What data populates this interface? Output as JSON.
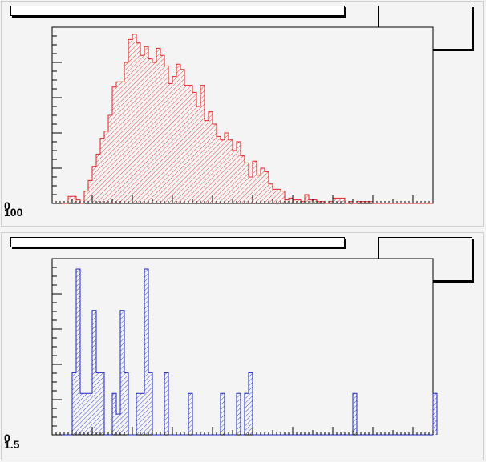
{
  "chart_data": [
    {
      "type": "histogram",
      "title": "",
      "xlabel": "",
      "ylabel": "",
      "style": {
        "line_color": "#e0221f",
        "fill_color": "#e0221f",
        "fill_pattern": "diagonal-hatch"
      },
      "xlim": [
        0,
        95
      ],
      "ylim": [
        0,
        100
      ],
      "y_tick_labels": [
        "0",
        "100"
      ],
      "bin_width": 1,
      "values": [
        0,
        0,
        0,
        0,
        4,
        4,
        2,
        0,
        7,
        13,
        21,
        28,
        37,
        41,
        50,
        66,
        69,
        69,
        80,
        93,
        96,
        91,
        84,
        89,
        82,
        80,
        88,
        84,
        78,
        68,
        72,
        79,
        76,
        67,
        67,
        63,
        55,
        67,
        47,
        52,
        45,
        38,
        36,
        40,
        36,
        30,
        35,
        27,
        23,
        15,
        24,
        16,
        20,
        18,
        11,
        8,
        8,
        7,
        2,
        3,
        2,
        2,
        1,
        5,
        2,
        2,
        1,
        1,
        0,
        1,
        3,
        3,
        3,
        0,
        1,
        0,
        1,
        1,
        1,
        1,
        0,
        0,
        0,
        0,
        0,
        0,
        0,
        0,
        0,
        0,
        0,
        0,
        0,
        0,
        0
      ]
    },
    {
      "type": "histogram",
      "title": "",
      "xlabel": "",
      "ylabel": "",
      "style": {
        "line_color": "#1a23c4",
        "fill_color": "#1a23c4",
        "fill_pattern": "diagonal-hatch"
      },
      "xlim": [
        0,
        95
      ],
      "ylim": [
        0,
        8.5
      ],
      "y_tick_labels": [
        "0",
        "1.5"
      ],
      "bin_width": 1,
      "values": [
        0,
        0,
        0,
        0,
        0,
        3,
        8,
        2,
        2,
        2,
        6,
        3,
        3,
        0,
        0,
        2,
        1,
        6,
        3,
        0,
        0,
        2,
        2,
        8,
        3,
        0,
        0,
        0,
        3,
        0,
        0,
        0,
        0,
        0,
        2,
        0,
        0,
        0,
        0,
        0,
        0,
        0,
        2,
        0,
        0,
        0,
        2,
        0,
        2,
        3,
        0,
        0,
        0,
        0,
        0,
        0,
        0,
        0,
        0,
        0,
        0,
        0,
        0,
        0,
        0,
        0,
        0,
        0,
        0,
        0,
        0,
        0,
        0,
        0,
        0,
        2,
        0,
        0,
        0,
        0,
        0,
        0,
        0,
        0,
        0,
        0,
        0,
        0,
        0,
        0,
        0,
        0,
        0,
        0,
        0,
        2
      ]
    }
  ]
}
